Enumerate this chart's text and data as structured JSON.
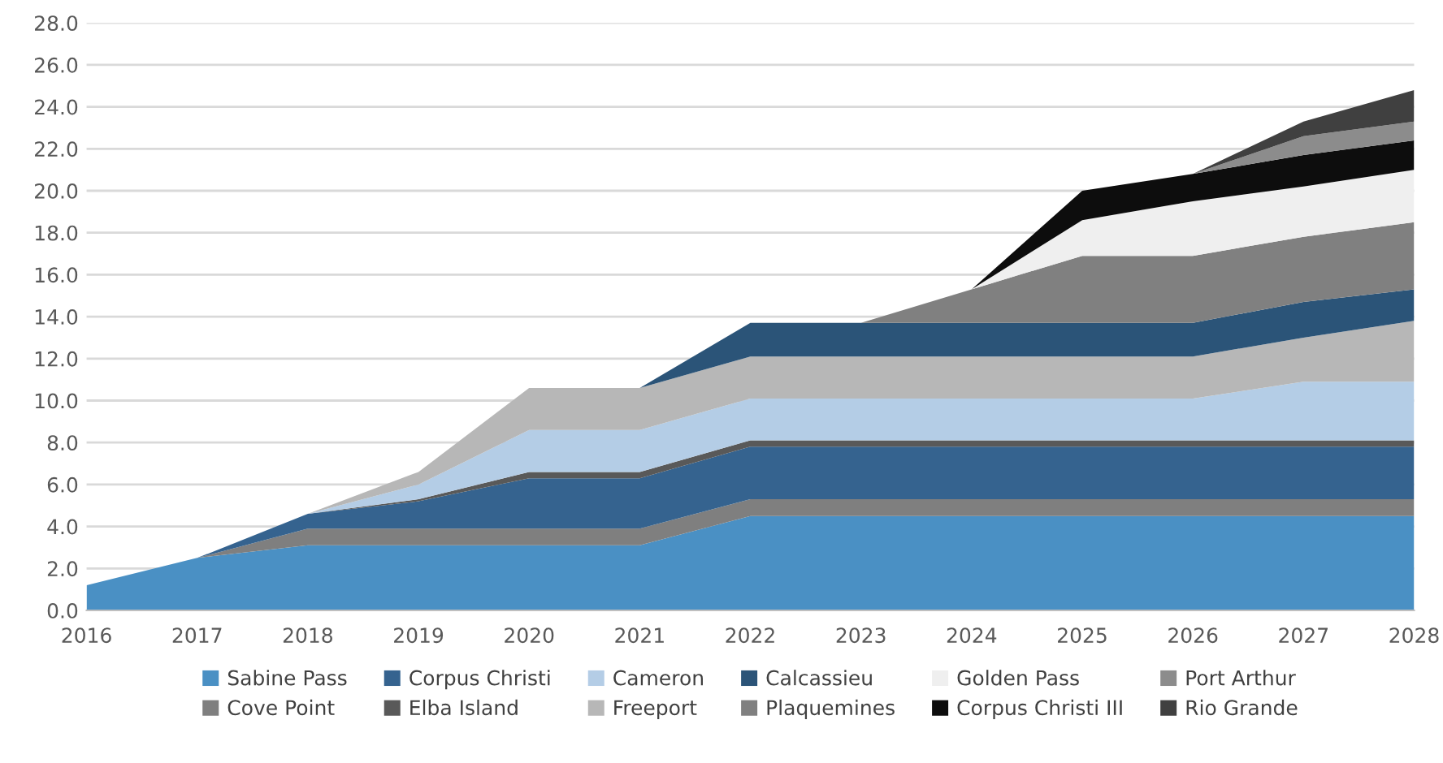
{
  "chart_data": {
    "type": "area",
    "stacked": true,
    "x": [
      2016,
      2017,
      2018,
      2019,
      2020,
      2021,
      2022,
      2023,
      2024,
      2025,
      2026,
      2027,
      2028
    ],
    "series": [
      {
        "name": "Sabine Pass",
        "color": "#4a90c4",
        "values": [
          1.2,
          2.5,
          3.1,
          3.1,
          3.1,
          3.1,
          4.5,
          4.5,
          4.5,
          4.5,
          4.5,
          4.5,
          4.5
        ]
      },
      {
        "name": "Cove Point",
        "color": "#7f7f7f",
        "values": [
          0,
          0,
          0.8,
          0.8,
          0.8,
          0.8,
          0.8,
          0.8,
          0.8,
          0.8,
          0.8,
          0.8,
          0.8
        ]
      },
      {
        "name": "Corpus Christi",
        "color": "#35638f",
        "values": [
          0,
          0,
          0.7,
          1.3,
          2.4,
          2.4,
          2.5,
          2.5,
          2.5,
          2.5,
          2.5,
          2.5,
          2.5
        ]
      },
      {
        "name": "Elba Island",
        "color": "#595959",
        "values": [
          0,
          0,
          0,
          0.1,
          0.3,
          0.3,
          0.3,
          0.3,
          0.3,
          0.3,
          0.3,
          0.3,
          0.3
        ]
      },
      {
        "name": "Cameron",
        "color": "#b4cde6",
        "values": [
          0,
          0,
          0,
          0.7,
          2.0,
          2.0,
          2.0,
          2.0,
          2.0,
          2.0,
          2.0,
          2.8,
          2.8
        ]
      },
      {
        "name": "Freeport",
        "color": "#b7b7b7",
        "values": [
          0,
          0,
          0,
          0.6,
          2.0,
          2.0,
          2.0,
          2.0,
          2.0,
          2.0,
          2.0,
          2.1,
          2.9
        ]
      },
      {
        "name": "Calcassieu",
        "color": "#2b5478",
        "values": [
          0,
          0,
          0,
          0,
          0,
          0,
          1.6,
          1.6,
          1.6,
          1.6,
          1.6,
          1.7,
          1.5
        ]
      },
      {
        "name": "Plaquemines",
        "color": "#808080",
        "values": [
          0,
          0,
          0,
          0,
          0,
          0,
          0,
          0,
          1.6,
          3.2,
          3.2,
          3.1,
          3.2
        ]
      },
      {
        "name": "Golden Pass",
        "color": "#efefef",
        "values": [
          0,
          0,
          0,
          0,
          0,
          0,
          0,
          0,
          0,
          1.7,
          2.6,
          2.4,
          2.5
        ]
      },
      {
        "name": "Corpus Christi III",
        "color": "#0d0d0d",
        "values": [
          0,
          0,
          0,
          0,
          0,
          0,
          0,
          0,
          0,
          1.4,
          1.3,
          1.5,
          1.4
        ]
      },
      {
        "name": "Port Arthur",
        "color": "#8c8c8c",
        "values": [
          0,
          0,
          0,
          0,
          0,
          0,
          0,
          0,
          0,
          0,
          0,
          0.9,
          0.9
        ]
      },
      {
        "name": "Rio Grande",
        "color": "#404040",
        "values": [
          0,
          0,
          0,
          0,
          0,
          0,
          0,
          0,
          0,
          0,
          0,
          0.7,
          1.5
        ]
      }
    ],
    "xlim": [
      2016,
      2028
    ],
    "xticks": [
      2016,
      2017,
      2018,
      2019,
      2020,
      2021,
      2022,
      2023,
      2024,
      2025,
      2026,
      2027,
      2028
    ],
    "ylim": [
      0,
      28
    ],
    "yticks": [
      {
        "value": 0,
        "label": "0.0"
      },
      {
        "value": 2,
        "label": "2.0"
      },
      {
        "value": 4,
        "label": "4.0"
      },
      {
        "value": 6,
        "label": "6.0"
      },
      {
        "value": 8,
        "label": "8.0"
      },
      {
        "value": 10,
        "label": "10.0"
      },
      {
        "value": 12,
        "label": "12.0"
      },
      {
        "value": 14,
        "label": "14.0"
      },
      {
        "value": 16,
        "label": "16.0"
      },
      {
        "value": 18,
        "label": "18.0"
      },
      {
        "value": 20,
        "label": "20.0"
      },
      {
        "value": 22,
        "label": "22.0"
      },
      {
        "value": 24,
        "label": "24.0"
      },
      {
        "value": 26,
        "label": "26.0"
      },
      {
        "value": 28,
        "label": "28.0"
      }
    ],
    "grid": "y",
    "legend": "bottom"
  }
}
